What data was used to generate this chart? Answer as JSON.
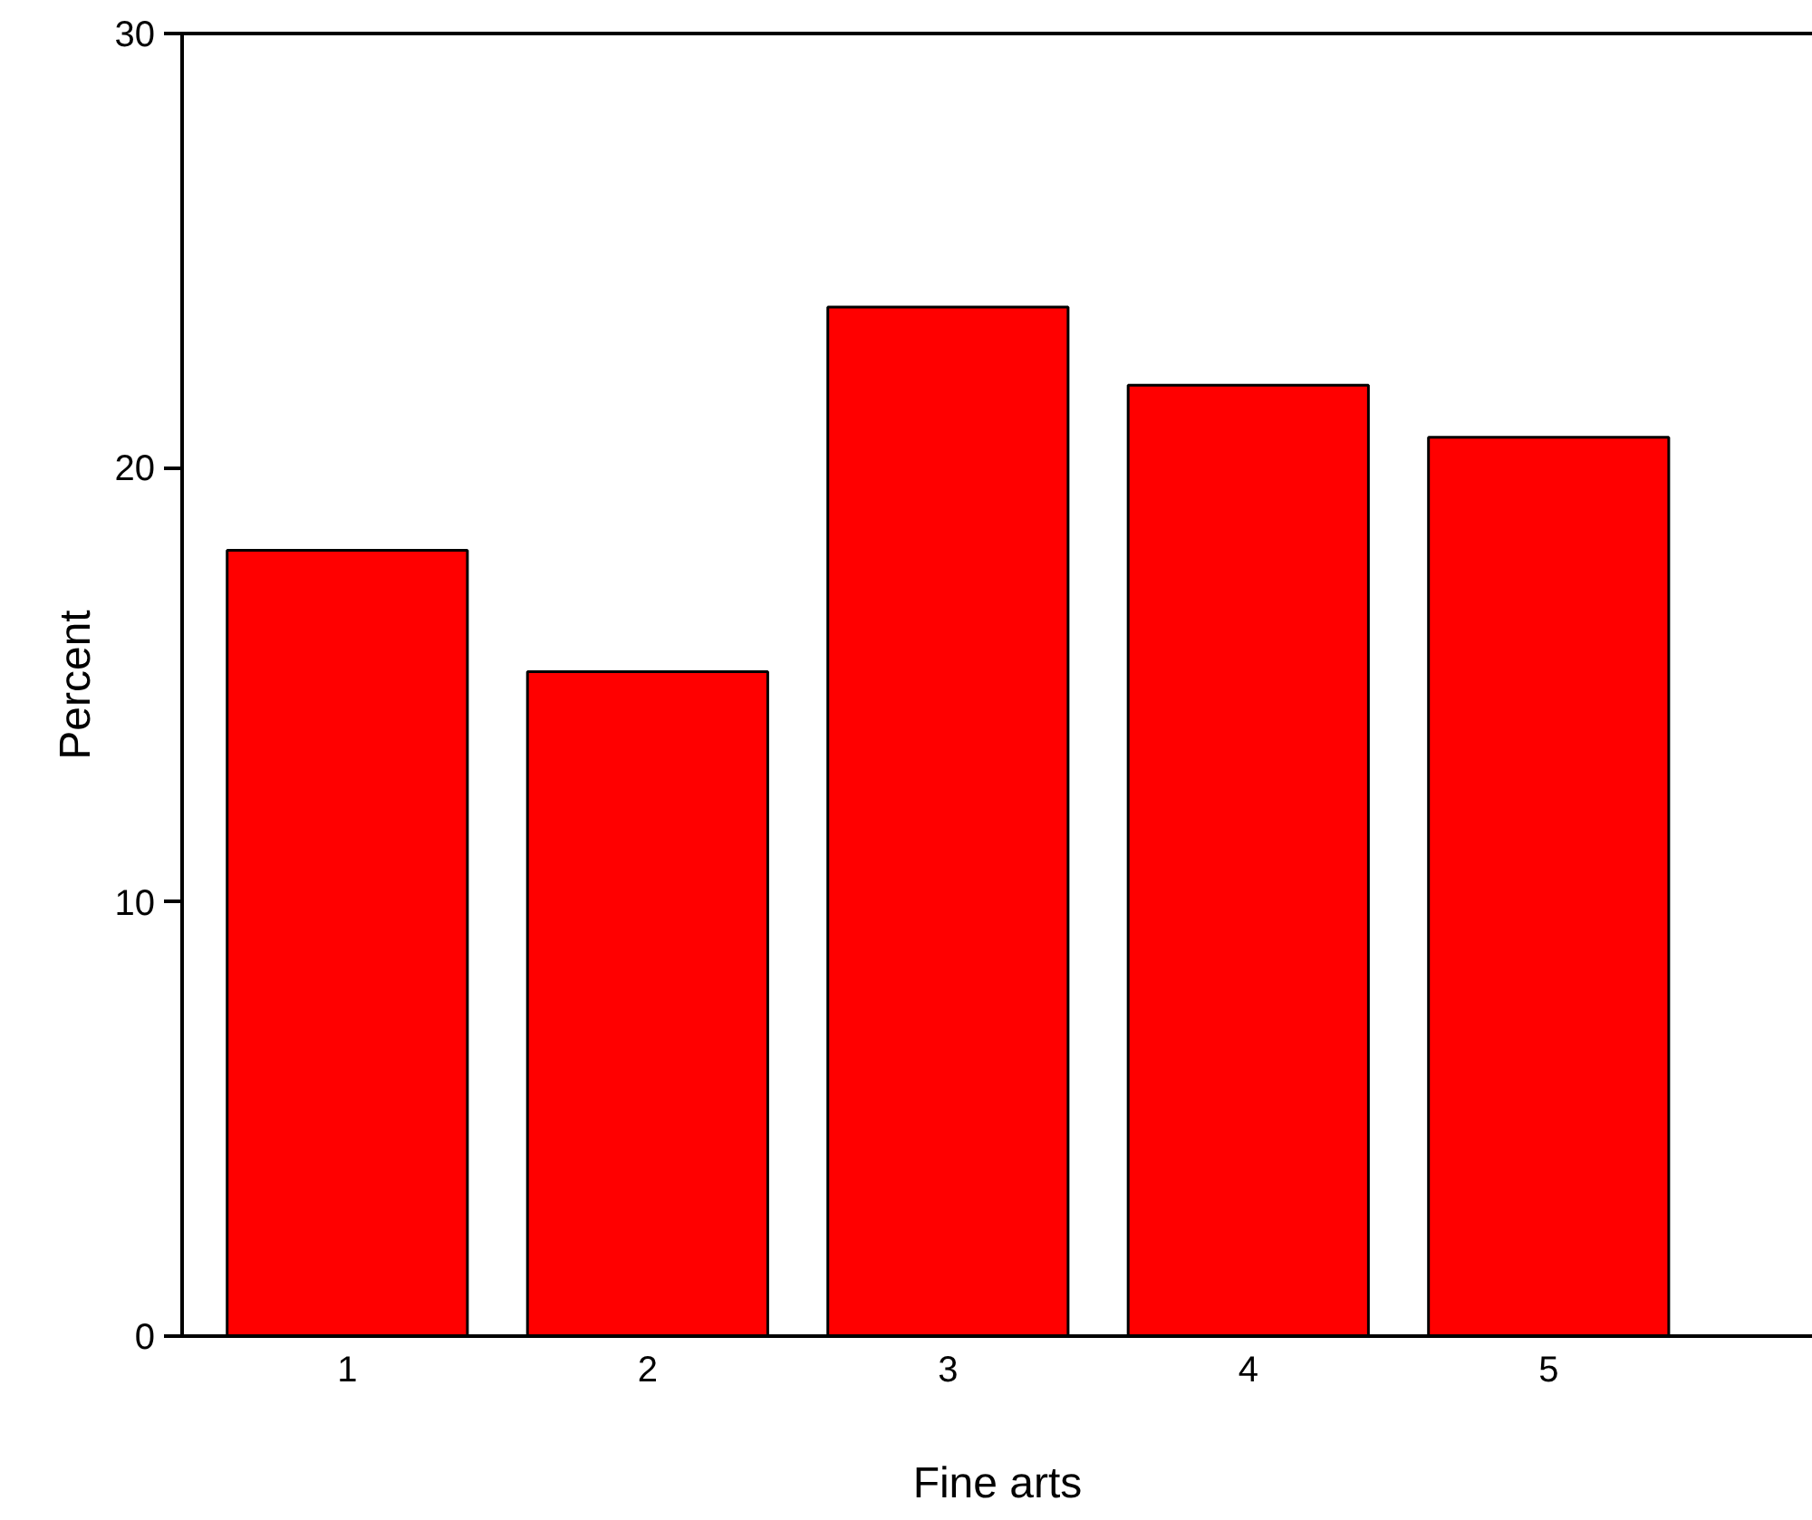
{
  "chart_data": {
    "type": "bar",
    "xlabel": "Fine arts",
    "ylabel": "Percent",
    "categories": [
      "1",
      "2",
      "3",
      "4",
      "5"
    ],
    "values": [
      18.1,
      15.3,
      23.7,
      21.9,
      20.7
    ],
    "color": "#ff0000",
    "ylim": [
      0,
      30
    ],
    "yticks": [
      0,
      10,
      20,
      30
    ],
    "grid": false
  }
}
